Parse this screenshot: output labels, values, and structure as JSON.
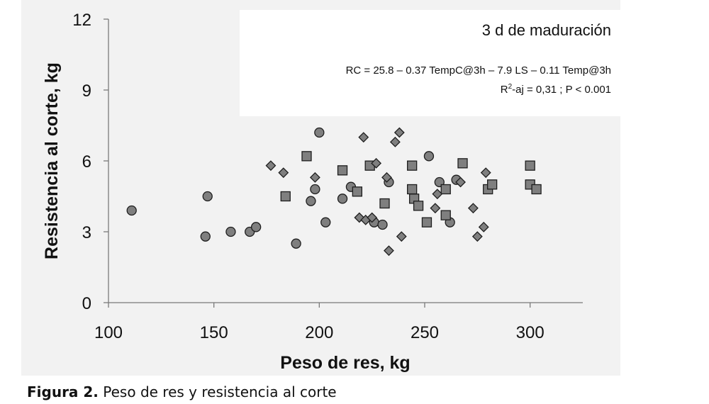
{
  "caption": {
    "figure_label": "Figura 2.",
    "text": "Peso de res y resistencia al corte"
  },
  "chart_data": {
    "type": "scatter",
    "title": "",
    "xlabel": "Peso de res, kg",
    "ylabel": "Resistencia al corte, kg",
    "xlim": [
      100,
      325
    ],
    "ylim": [
      0,
      12
    ],
    "x_ticks": [
      100,
      150,
      200,
      250,
      300
    ],
    "y_ticks": [
      0,
      3,
      6,
      9,
      12
    ],
    "grid": false,
    "legend": "none",
    "annotation": {
      "title": "3 d de maduración",
      "equation": "RC = 25.8 – 0.37 TempC@3h – 7.9 LS – 0.11 Temp@3h",
      "stats_r2_symbol": "R",
      "stats_r2_exponent": "2",
      "stats_rest": "-aj = 0,31 ; P < 0.001"
    },
    "series": [
      {
        "marker": "circle",
        "x": [
          111,
          146,
          147,
          158,
          167,
          170,
          189,
          196,
          198,
          200,
          203,
          211,
          215,
          226,
          230,
          233,
          252,
          257,
          262,
          265
        ],
        "y": [
          3.9,
          2.8,
          4.5,
          3.0,
          3.0,
          3.2,
          2.5,
          4.3,
          4.8,
          7.2,
          3.4,
          4.4,
          4.9,
          3.4,
          3.3,
          5.1,
          6.2,
          5.1,
          3.4,
          5.2
        ]
      },
      {
        "marker": "square",
        "x": [
          184,
          194,
          211,
          218,
          224,
          231,
          244,
          244,
          245,
          247,
          251,
          260,
          260,
          268,
          280,
          282,
          300,
          300,
          303
        ],
        "y": [
          4.5,
          6.2,
          5.6,
          4.7,
          5.8,
          4.2,
          5.8,
          4.8,
          4.4,
          4.1,
          3.4,
          3.7,
          4.8,
          5.9,
          4.8,
          5.0,
          5.8,
          5.0,
          4.8
        ]
      },
      {
        "marker": "diamond",
        "x": [
          177,
          183,
          198,
          219,
          221,
          222,
          225,
          227,
          232,
          233,
          236,
          238,
          239,
          255,
          256,
          267,
          273,
          275,
          278,
          279
        ],
        "y": [
          5.8,
          5.5,
          5.3,
          3.6,
          7.0,
          3.5,
          3.6,
          5.9,
          5.3,
          2.2,
          6.8,
          7.2,
          2.8,
          4.0,
          4.6,
          5.1,
          4.0,
          2.8,
          3.2,
          5.5
        ]
      }
    ]
  },
  "colors": {
    "marker_fill": "#7f7f7f",
    "marker_stroke": "#1e1e1e",
    "axis": "#7a7a7a",
    "panel": "#f2f2f2"
  }
}
